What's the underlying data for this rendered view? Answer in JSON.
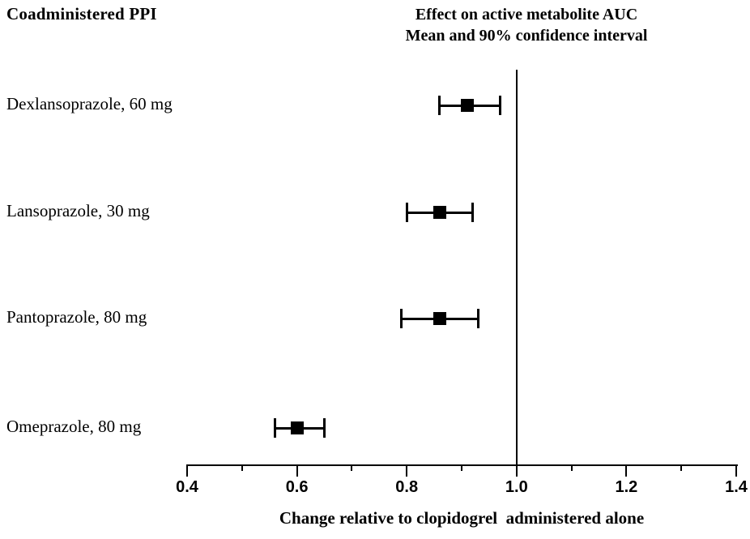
{
  "page": {
    "background": "#ffffff",
    "foreground": "#000000"
  },
  "header": {
    "left_title": "Coadministered PPI"
  },
  "title": {
    "line1": "Effect on active metabolite AUC",
    "line2": "Mean and 90% confidence interval"
  },
  "chart_data": {
    "type": "scatter",
    "subtype": "forest-plot-horizontal-error-bars",
    "title": "Effect on active metabolite AUC",
    "subtitle": "Mean and 90% confidence interval",
    "xlabel": "Change relative to clopidogrel  administered alone",
    "xlim": [
      0.4,
      1.4
    ],
    "xticks_major": [
      0.4,
      0.6,
      0.8,
      1.0,
      1.2,
      1.4
    ],
    "xticks_minor": [
      0.5,
      0.7,
      0.9,
      1.1,
      1.3
    ],
    "reference_line_x": 1.0,
    "marker": "black-square",
    "error_bar": "90% confidence interval",
    "rows": [
      {
        "label": "Dexlansoprazole, 60 mg",
        "mean": 0.91,
        "ci_low": 0.86,
        "ci_high": 0.97
      },
      {
        "label": "Lansoprazole, 30 mg",
        "mean": 0.86,
        "ci_low": 0.8,
        "ci_high": 0.92
      },
      {
        "label": "Pantoprazole, 80 mg",
        "mean": 0.86,
        "ci_low": 0.79,
        "ci_high": 0.93
      },
      {
        "label": "Omeprazole, 80 mg",
        "mean": 0.6,
        "ci_low": 0.56,
        "ci_high": 0.65
      }
    ]
  }
}
